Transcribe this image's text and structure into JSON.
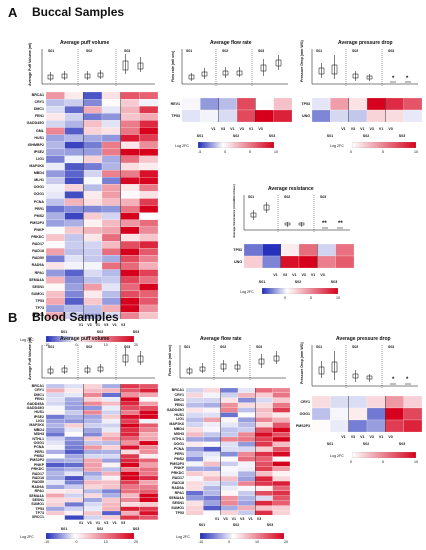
{
  "sections": {
    "A": {
      "letter": "A",
      "title": "Buccal Samples"
    },
    "B": {
      "letter": "B",
      "title": "Blood Samples"
    }
  },
  "titles": {
    "puff": "Average puff volume",
    "flow": "Average flow rate",
    "pressure": "Average pressure drop",
    "resistance": "Average resistance"
  },
  "ylabels": {
    "puff": "Average Puff Volume (ml)",
    "flow": "Flow rate (ml/ sec)",
    "pressure": "Pressure Drop (mm WG)",
    "resistance": "Average Resistance (mmH2O/ ml/sec)"
  },
  "groups": [
    "S01",
    "S02",
    "S03"
  ],
  "visits": [
    "V1",
    "V3"
  ],
  "log2fc": "Log 2FC",
  "stars": {
    "single": "*",
    "double": "**"
  },
  "colorbars": {
    "wide": [
      "-10",
      "0",
      "10",
      "20"
    ],
    "narrow": [
      "-5",
      "0",
      "5",
      "10"
    ],
    "positive": [
      "0",
      "5",
      "10"
    ]
  },
  "genes": {
    "buccal_puff": [
      "BRCA1",
      "CRY1",
      "DMC1",
      "FEN1",
      "GADD45G",
      "GML",
      "HUS1",
      "IGHMBP2",
      "IPSE2",
      "LIG1",
      "MAP2K6",
      "MBD4",
      "MLH1",
      "OGG1",
      "OGG1",
      "PCNA",
      "PER1",
      "PMS2",
      "PMS2P3",
      "PNKP",
      "PRKDC",
      "RAD17",
      "RAD18",
      "RAD50",
      "RAD9A",
      "RPA1",
      "SEMA4A",
      "SESN1",
      "SUMO1",
      "TP53",
      "TP73",
      "XRCC1"
    ],
    "buccal_flow": [
      "REV1",
      "TP53"
    ],
    "buccal_pressure": [
      "TP53",
      "UNG"
    ],
    "buccal_resistance": [
      "TP53",
      "UNG"
    ],
    "blood_puff": [
      "BRCA1",
      "CRY1",
      "DMC1",
      "FEN1",
      "GADD45A",
      "GADD45G",
      "HUS1",
      "IPSE2",
      "LIG1",
      "MAP2K6",
      "MBD4",
      "MSH3",
      "NTHL1",
      "OGG1",
      "PCNA",
      "PER1",
      "PMS2",
      "PMS2P3",
      "PNKP",
      "PRKDC",
      "RAD17",
      "RAD18",
      "RAD50",
      "RAD9A",
      "RPA1",
      "SEMA4A",
      "SESN1",
      "SUMO1",
      "TP53",
      "TP73",
      "XRCC1"
    ],
    "blood_flow": [
      "BRCA1",
      "CRY1",
      "DMC1",
      "FEN1",
      "GADD45G",
      "HUS1",
      "LIG1",
      "MAP2K6",
      "MBD4",
      "MSH3",
      "NTHL1",
      "OGG1",
      "PCNA",
      "PER1",
      "PMS2",
      "PMS2P3",
      "PNKP",
      "PRKDC",
      "RAD17",
      "RAD18",
      "RAD9A",
      "RPA1",
      "SEMA4A",
      "SESN1",
      "SUMO1",
      "TP53"
    ],
    "blood_pressure": [
      "CRY1",
      "OGG1",
      "PMS2P3"
    ]
  }
}
